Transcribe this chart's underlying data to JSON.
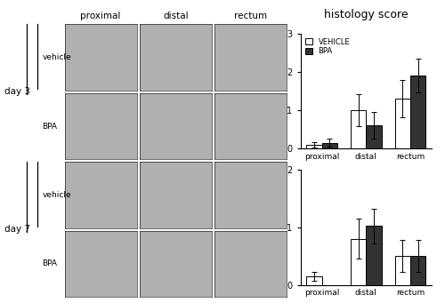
{
  "title": "histology score",
  "categories": [
    "proximal",
    "distal",
    "rectum"
  ],
  "day3": {
    "vehicle_means": [
      0.1,
      1.0,
      1.3
    ],
    "vehicle_errs": [
      0.07,
      0.42,
      0.48
    ],
    "bpa_means": [
      0.15,
      0.6,
      1.9
    ],
    "bpa_errs": [
      0.1,
      0.35,
      0.45
    ]
  },
  "day7": {
    "vehicle_means": [
      0.15,
      0.8,
      0.5
    ],
    "vehicle_errs": [
      0.08,
      0.35,
      0.28
    ],
    "bpa_means": [
      0.0,
      1.02,
      0.5
    ],
    "bpa_errs": [
      0.0,
      0.3,
      0.28
    ]
  },
  "day3_ylim": [
    0,
    3
  ],
  "day7_ylim": [
    0,
    2
  ],
  "day3_yticks": [
    0,
    1,
    2,
    3
  ],
  "day7_yticks": [
    0,
    1,
    2
  ],
  "vehicle_color": "#ffffff",
  "bpa_color": "#333333",
  "edge_color": "#000000",
  "bar_width": 0.35,
  "legend_labels": [
    "VEHICLE",
    "BPA"
  ],
  "col_labels": [
    "proximal",
    "distal",
    "rectum"
  ],
  "figure_bg": "#ffffff",
  "img_panel_color": "#b0b0b0"
}
